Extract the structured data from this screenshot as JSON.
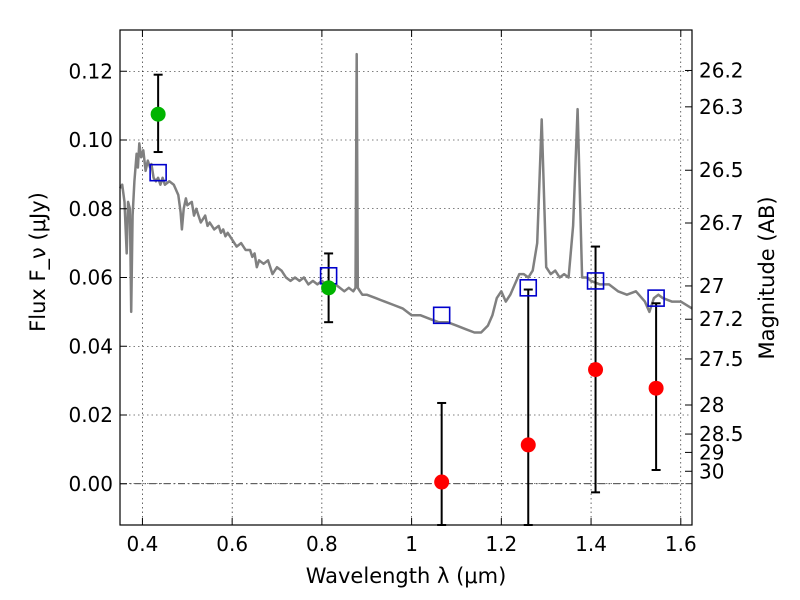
{
  "chart_data": {
    "type": "scatter",
    "xlabel": "Wavelength λ (μm)",
    "ylabel": "Flux F_ν (μJy)",
    "y2label": "Magnitude (AB)",
    "xlim": [
      0.35,
      1.625
    ],
    "ylim": [
      -0.012,
      0.132
    ],
    "grid": true,
    "x_ticks": [
      0.4,
      0.6,
      0.8,
      1.0,
      1.2,
      1.4,
      1.6
    ],
    "x_tick_labels": [
      "0.4",
      "0.6",
      "0.8",
      "1",
      "1.2",
      "1.4",
      "1.6"
    ],
    "y_ticks": [
      0.0,
      0.02,
      0.04,
      0.06,
      0.08,
      0.1,
      0.12
    ],
    "y_tick_labels": [
      "0.00",
      "0.02",
      "0.04",
      "0.06",
      "0.08",
      "0.10",
      "0.12"
    ],
    "mag_ticks": [
      "26.2",
      "26.3",
      "26.5",
      "26.7",
      "27",
      "27.2",
      "27.5",
      "28",
      "28.5",
      "29",
      "30"
    ],
    "colors": {
      "spectrum": "#808080",
      "detections": "#00b400",
      "upper_limits": "#ff0000",
      "model_photometry": "#0000cc",
      "errorbar": "#000000"
    },
    "series": [
      {
        "kind": "spectrum",
        "x": [
          0.35,
          0.355,
          0.36,
          0.365,
          0.368,
          0.372,
          0.375,
          0.378,
          0.382,
          0.387,
          0.39,
          0.393,
          0.397,
          0.402,
          0.407,
          0.412,
          0.417,
          0.42,
          0.425,
          0.43,
          0.435,
          0.44,
          0.445,
          0.45,
          0.46,
          0.47,
          0.48,
          0.485,
          0.488,
          0.492,
          0.497,
          0.5,
          0.51,
          0.515,
          0.52,
          0.525,
          0.53,
          0.54,
          0.545,
          0.55,
          0.56,
          0.57,
          0.575,
          0.58,
          0.585,
          0.59,
          0.6,
          0.61,
          0.62,
          0.63,
          0.64,
          0.645,
          0.65,
          0.655,
          0.66,
          0.67,
          0.68,
          0.69,
          0.7,
          0.71,
          0.72,
          0.73,
          0.74,
          0.75,
          0.76,
          0.77,
          0.78,
          0.79,
          0.8,
          0.81,
          0.82,
          0.83,
          0.84,
          0.85,
          0.86,
          0.87,
          0.875,
          0.8775,
          0.88,
          0.885,
          0.89,
          0.9,
          0.92,
          0.94,
          0.96,
          0.98,
          1.0,
          1.02,
          1.04,
          1.06,
          1.08,
          1.1,
          1.12,
          1.14,
          1.155,
          1.17,
          1.18,
          1.19,
          1.2,
          1.21,
          1.22,
          1.23,
          1.24,
          1.25,
          1.26,
          1.27,
          1.28,
          1.29,
          1.3,
          1.31,
          1.32,
          1.33,
          1.34,
          1.35,
          1.36,
          1.37,
          1.38,
          1.39,
          1.4,
          1.42,
          1.44,
          1.46,
          1.48,
          1.5,
          1.52,
          1.53,
          1.54,
          1.55,
          1.56,
          1.58,
          1.6,
          1.625
        ],
        "y": [
          0.086,
          0.087,
          0.082,
          0.067,
          0.082,
          0.08,
          0.05,
          0.078,
          0.088,
          0.096,
          0.092,
          0.099,
          0.095,
          0.097,
          0.091,
          0.094,
          0.092,
          0.093,
          0.089,
          0.088,
          0.089,
          0.087,
          0.089,
          0.087,
          0.088,
          0.087,
          0.084,
          0.079,
          0.074,
          0.08,
          0.083,
          0.081,
          0.082,
          0.078,
          0.08,
          0.078,
          0.076,
          0.078,
          0.075,
          0.076,
          0.074,
          0.075,
          0.073,
          0.074,
          0.072,
          0.073,
          0.071,
          0.069,
          0.07,
          0.068,
          0.068,
          0.066,
          0.067,
          0.063,
          0.065,
          0.064,
          0.065,
          0.061,
          0.063,
          0.062,
          0.06,
          0.059,
          0.06,
          0.059,
          0.06,
          0.058,
          0.059,
          0.058,
          0.059,
          0.058,
          0.057,
          0.058,
          0.057,
          0.056,
          0.057,
          0.056,
          0.057,
          0.125,
          0.057,
          0.056,
          0.055,
          0.055,
          0.054,
          0.053,
          0.052,
          0.051,
          0.049,
          0.049,
          0.048,
          0.047,
          0.047,
          0.046,
          0.045,
          0.044,
          0.044,
          0.046,
          0.049,
          0.054,
          0.056,
          0.053,
          0.055,
          0.058,
          0.061,
          0.061,
          0.06,
          0.062,
          0.07,
          0.106,
          0.063,
          0.061,
          0.062,
          0.06,
          0.061,
          0.06,
          0.075,
          0.109,
          0.06,
          0.06,
          0.059,
          0.058,
          0.058,
          0.056,
          0.055,
          0.056,
          0.053,
          0.05,
          0.054,
          0.055,
          0.054,
          0.053,
          0.053,
          0.051
        ]
      },
      {
        "kind": "detections",
        "x": [
          0.435,
          0.815
        ],
        "y": [
          0.1075,
          0.057
        ],
        "yerr_low": [
          0.0965,
          0.047
        ],
        "yerr_high": [
          0.119,
          0.067
        ]
      },
      {
        "kind": "upper_limits",
        "x": [
          1.067,
          1.26,
          1.41,
          1.545
        ],
        "y": [
          0.0005,
          0.0113,
          0.0332,
          0.0278
        ],
        "yerr_low": [
          -0.012,
          -0.012,
          -0.0025,
          0.004
        ],
        "yerr_high": [
          0.0235,
          0.0565,
          0.069,
          0.0525
        ]
      },
      {
        "kind": "model_photometry",
        "x": [
          0.435,
          0.815,
          1.067,
          1.26,
          1.41,
          1.545
        ],
        "y": [
          0.0905,
          0.0605,
          0.049,
          0.057,
          0.059,
          0.054
        ]
      }
    ]
  }
}
